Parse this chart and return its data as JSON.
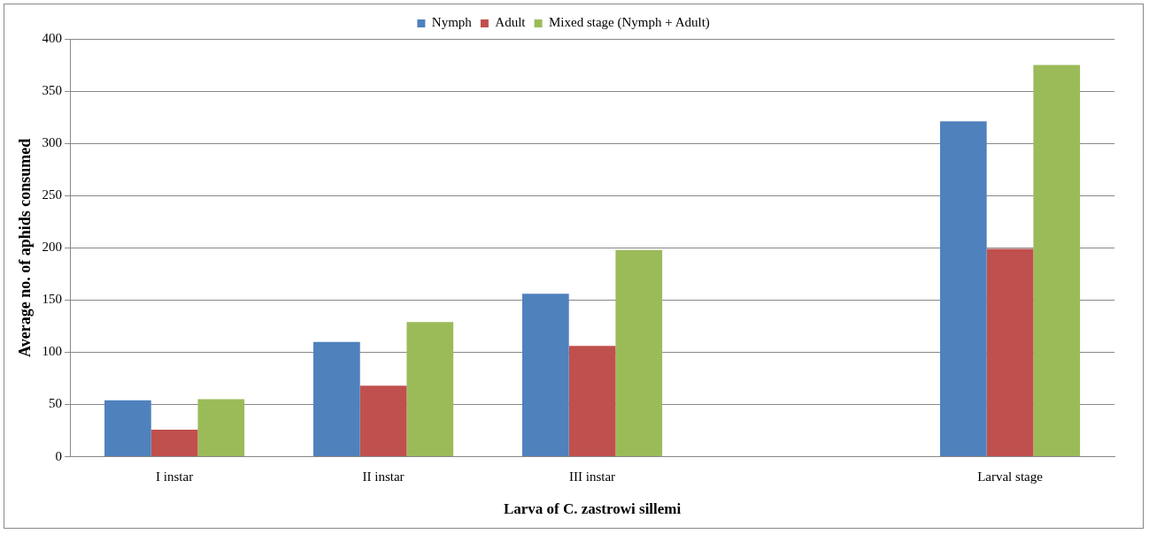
{
  "chart_data": {
    "type": "bar",
    "xlabel": "Larva of C. zastrowi sillemi",
    "ylabel": "Average no. of aphids consumed",
    "categories": [
      "I instar",
      "II instar",
      "III instar",
      null,
      "Larval stage"
    ],
    "series": [
      {
        "name": "Nymph",
        "color": "#4f81bd",
        "values": [
          54,
          110,
          156,
          null,
          321
        ]
      },
      {
        "name": "Adult",
        "color": "#c0504d",
        "values": [
          26,
          68,
          106,
          null,
          199
        ]
      },
      {
        "name": "Mixed stage (Nymph + Adult)",
        "color": "#9bbb59",
        "values": [
          55,
          129,
          198,
          null,
          375
        ]
      }
    ],
    "ylim": [
      0,
      400
    ],
    "yticks": [
      0,
      50,
      100,
      150,
      200,
      250,
      300,
      350,
      400
    ],
    "grid": "y",
    "legend": "top"
  }
}
